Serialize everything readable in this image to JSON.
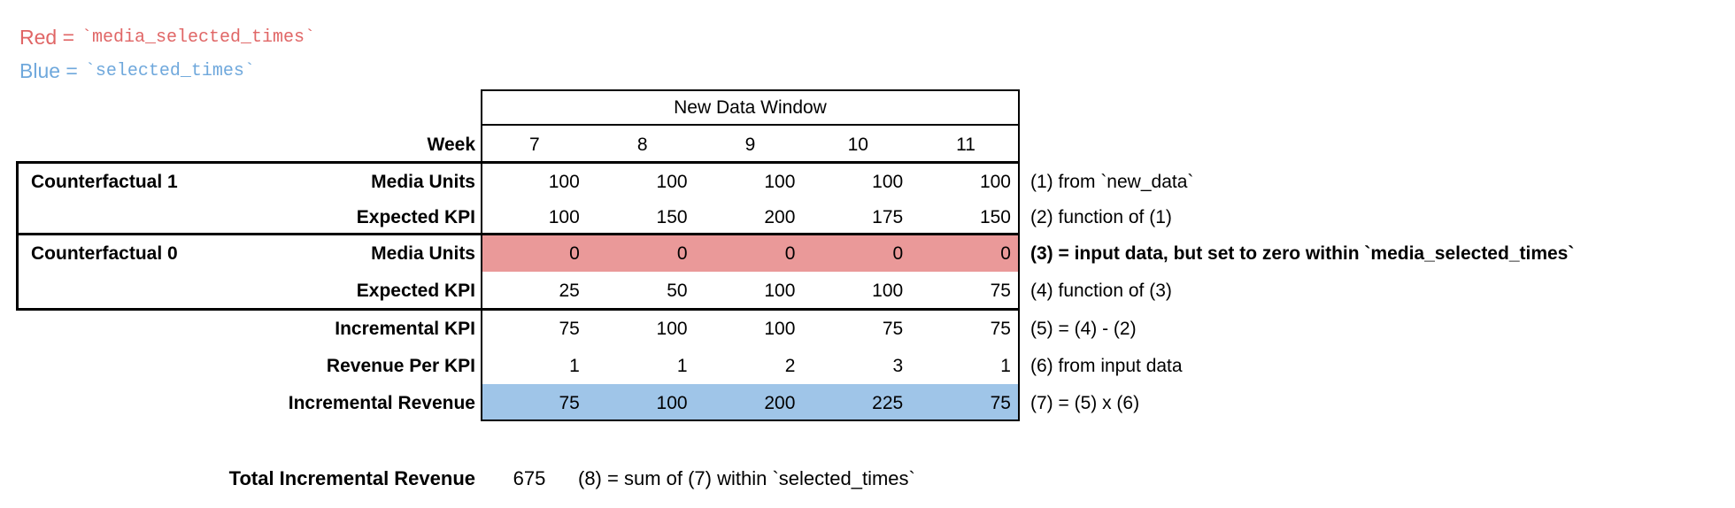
{
  "legend": {
    "red_prefix": "Red =",
    "red_code": "`media_selected_times`",
    "blue_prefix": "Blue =",
    "blue_code": "`selected_times`",
    "colors": {
      "red_text": "#e06666",
      "blue_text": "#6fa8dc",
      "red_fill": "#ea9999",
      "blue_fill": "#9fc5e8"
    }
  },
  "table": {
    "window_header": "New Data Window",
    "week_label": "Week",
    "weeks": [
      "7",
      "8",
      "9",
      "10",
      "11"
    ],
    "groups": [
      {
        "label": "Counterfactual 1"
      },
      {
        "label": "Counterfactual 0"
      }
    ],
    "rows": [
      {
        "label": "Media Units",
        "values": [
          "100",
          "100",
          "100",
          "100",
          "100"
        ],
        "annotation": "(1) from `new_data`"
      },
      {
        "label": "Expected KPI",
        "values": [
          "100",
          "150",
          "200",
          "175",
          "150"
        ],
        "annotation": "(2) function of (1)"
      },
      {
        "label": "Media Units",
        "values": [
          "0",
          "0",
          "0",
          "0",
          "0"
        ],
        "annotation": "(3) = input data, but set to zero within `media_selected_times`",
        "highlight": "red",
        "annotation_bold": true
      },
      {
        "label": "Expected KPI",
        "values": [
          "25",
          "50",
          "100",
          "100",
          "75"
        ],
        "annotation": "(4) function of (3)"
      },
      {
        "label": "Incremental KPI",
        "values": [
          "75",
          "100",
          "100",
          "75",
          "75"
        ],
        "annotation": "(5) = (4) - (2)"
      },
      {
        "label": "Revenue Per KPI",
        "values": [
          "1",
          "1",
          "2",
          "3",
          "1"
        ],
        "annotation": "(6) from input data"
      },
      {
        "label": "Incremental Revenue",
        "values": [
          "75",
          "100",
          "200",
          "225",
          "75"
        ],
        "annotation": "(7) = (5) x (6)",
        "highlight": "blue"
      }
    ]
  },
  "total": {
    "label": "Total Incremental Revenue",
    "value": "675",
    "annotation": "(8) = sum of (7) within `selected_times`"
  }
}
